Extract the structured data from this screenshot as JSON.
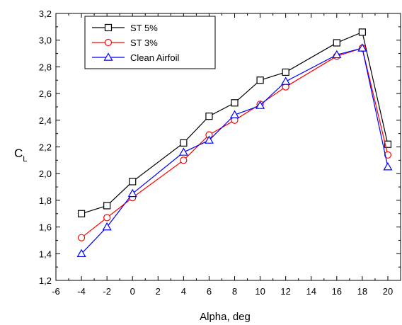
{
  "chart_data": {
    "type": "line",
    "title": "",
    "xlabel": "Alpha, deg",
    "ylabel_main": "C",
    "ylabel_sub": "L",
    "xlim": [
      -6,
      21
    ],
    "ylim": [
      1.2,
      3.2
    ],
    "x_ticks": [
      -6,
      -4,
      -2,
      0,
      2,
      4,
      6,
      8,
      10,
      12,
      14,
      16,
      18,
      20
    ],
    "x_tick_labels": [
      "-6",
      "-4",
      "-2",
      "0",
      "2",
      "4",
      "6",
      "8",
      "10",
      "12",
      "14",
      "16",
      "18",
      "20"
    ],
    "y_ticks": [
      1.2,
      1.4,
      1.6,
      1.8,
      2.0,
      2.2,
      2.4,
      2.6,
      2.8,
      3.0,
      3.2
    ],
    "y_tick_labels": [
      "1,2",
      "1,4",
      "1,6",
      "1,8",
      "2,0",
      "2,2",
      "2,4",
      "2,6",
      "2,8",
      "3,0",
      "3,2"
    ],
    "grid": false,
    "legend_position": "top-left",
    "series": [
      {
        "name": "ST 5%",
        "color": "#000000",
        "marker": "square",
        "x": [
          -4,
          -2,
          0,
          4,
          6,
          8,
          10,
          12,
          16,
          18,
          20
        ],
        "y": [
          1.7,
          1.76,
          1.94,
          2.23,
          2.43,
          2.53,
          2.7,
          2.76,
          2.98,
          3.06,
          2.22
        ]
      },
      {
        "name": "ST 3%",
        "color": "#ff0000",
        "marker": "circle",
        "x": [
          -4,
          -2,
          0,
          4,
          6,
          8,
          10,
          12,
          16,
          18,
          20
        ],
        "y": [
          1.52,
          1.67,
          1.82,
          2.1,
          2.29,
          2.4,
          2.52,
          2.65,
          2.88,
          2.94,
          2.14
        ]
      },
      {
        "name": "Clean Airfoil",
        "color": "#0000ff",
        "marker": "triangle",
        "x": [
          -4,
          -2,
          0,
          4,
          6,
          8,
          10,
          12,
          16,
          18,
          20
        ],
        "y": [
          1.4,
          1.6,
          1.85,
          2.16,
          2.25,
          2.44,
          2.51,
          2.69,
          2.89,
          2.94,
          2.05
        ]
      }
    ]
  }
}
